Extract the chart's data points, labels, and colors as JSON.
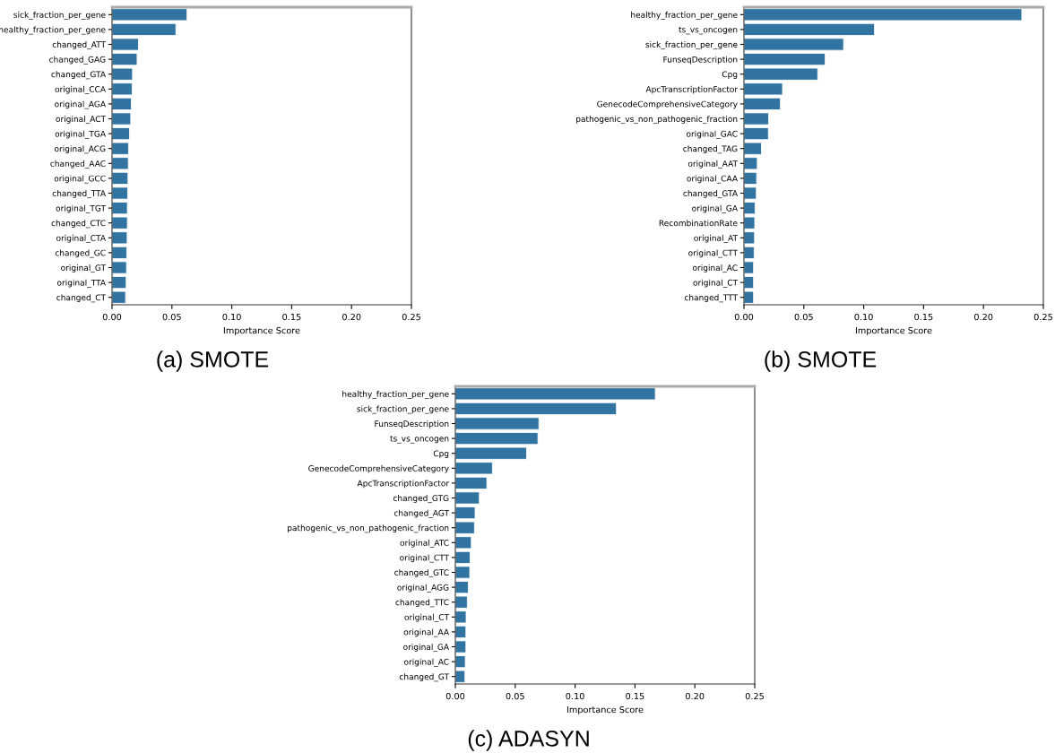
{
  "chart_data": [
    {
      "type": "bar",
      "orientation": "horizontal",
      "xlabel": "Importance Score",
      "annotations": [
        "(a) SMOTE"
      ],
      "color": "#3274a1",
      "grid": false,
      "legend": false,
      "categories": [
        "sick_fraction_per_gene",
        "healthy_fraction_per_gene",
        "changed_ATT",
        "changed_GAG",
        "changed_GTA",
        "original_CCA",
        "original_AGA",
        "original_ACT",
        "original_TGA",
        "original_ACG",
        "changed_AAC",
        "original_GCC",
        "changed_TTA",
        "original_TGT",
        "changed_CTC",
        "original_CTA",
        "changed_GC",
        "original_GT",
        "original_TTA",
        "changed_CT"
      ],
      "values": [
        0.0626,
        0.0533,
        0.0221,
        0.0209,
        0.0171,
        0.0168,
        0.0161,
        0.0156,
        0.0146,
        0.0138,
        0.0136,
        0.0133,
        0.0131,
        0.0128,
        0.0128,
        0.0126,
        0.0123,
        0.0121,
        0.0118,
        0.0113
      ],
      "xlim": [
        0,
        0.25
      ],
      "xticks": [
        {
          "value": 0,
          "label": "0.00"
        },
        {
          "value": 0.05,
          "label": "0.05"
        },
        {
          "value": 0.1,
          "label": "0.10"
        },
        {
          "value": 0.15,
          "label": "0.15"
        },
        {
          "value": 0.2,
          "label": "0.20"
        },
        {
          "value": 0.25,
          "label": "0.25"
        }
      ]
    },
    {
      "type": "bar",
      "orientation": "horizontal",
      "xlabel": "Importance Score",
      "annotations": [
        "(b) SMOTE"
      ],
      "color": "#3274a1",
      "grid": false,
      "legend": false,
      "categories": [
        "healthy_fraction_per_gene",
        "ts_vs_oncogen",
        "sick_fraction_per_gene",
        "FunseqDescription",
        "Cpg",
        "ApcTranscriptionFactor",
        "GenecodeComprehensiveCategory",
        "pathogenic_vs_non_pathogenic_fraction",
        "original_GAC",
        "changed_TAG",
        "original_AAT",
        "original_CAA",
        "changed_GTA",
        "original_GA",
        "RecombinationRate",
        "original_AT",
        "original_CTT",
        "original_AC",
        "original_CT",
        "changed_TTT"
      ],
      "values": [
        0.232,
        0.109,
        0.0832,
        0.0678,
        0.0616,
        0.0322,
        0.0304,
        0.0206,
        0.0204,
        0.0146,
        0.0111,
        0.0106,
        0.0103,
        0.0093,
        0.009,
        0.0088,
        0.0085,
        0.008,
        0.008,
        0.008
      ],
      "xlim": [
        0,
        0.25
      ],
      "xticks": [
        {
          "value": 0,
          "label": "0.00"
        },
        {
          "value": 0.05,
          "label": "0.05"
        },
        {
          "value": 0.1,
          "label": "0.10"
        },
        {
          "value": 0.15,
          "label": "0.15"
        },
        {
          "value": 0.2,
          "label": "0.20"
        },
        {
          "value": 0.25,
          "label": "0.25"
        }
      ]
    },
    {
      "type": "bar",
      "orientation": "horizontal",
      "xlabel": "Importance Score",
      "annotations": [
        "(c) ADASYN"
      ],
      "color": "#3274a1",
      "grid": false,
      "legend": false,
      "categories": [
        "healthy_fraction_per_gene",
        "sick_fraction_per_gene",
        "FunseqDescription",
        "ts_vs_oncogen",
        "Cpg",
        "GenecodeComprehensiveCategory",
        "ApcTranscriptionFactor",
        "changed_GTG",
        "changed_AGT",
        "pathogenic_vs_non_pathogenic_fraction",
        "original_ATC",
        "original_CTT",
        "changed_GTC",
        "original_AGG",
        "changed_TTC",
        "original_CT",
        "original_AA",
        "original_GA",
        "original_AC",
        "changed_GT"
      ],
      "values": [
        0.167,
        0.1345,
        0.0698,
        0.069,
        0.0595,
        0.031,
        0.0263,
        0.02,
        0.0165,
        0.016,
        0.0133,
        0.0123,
        0.012,
        0.0108,
        0.01,
        0.009,
        0.0088,
        0.0088,
        0.0083,
        0.008
      ],
      "xlim": [
        0,
        0.25
      ],
      "xticks": [
        {
          "value": 0,
          "label": "0.00"
        },
        {
          "value": 0.05,
          "label": "0.05"
        },
        {
          "value": 0.1,
          "label": "0.10"
        },
        {
          "value": 0.15,
          "label": "0.15"
        },
        {
          "value": 0.2,
          "label": "0.20"
        },
        {
          "value": 0.25,
          "label": "0.25"
        }
      ]
    }
  ]
}
